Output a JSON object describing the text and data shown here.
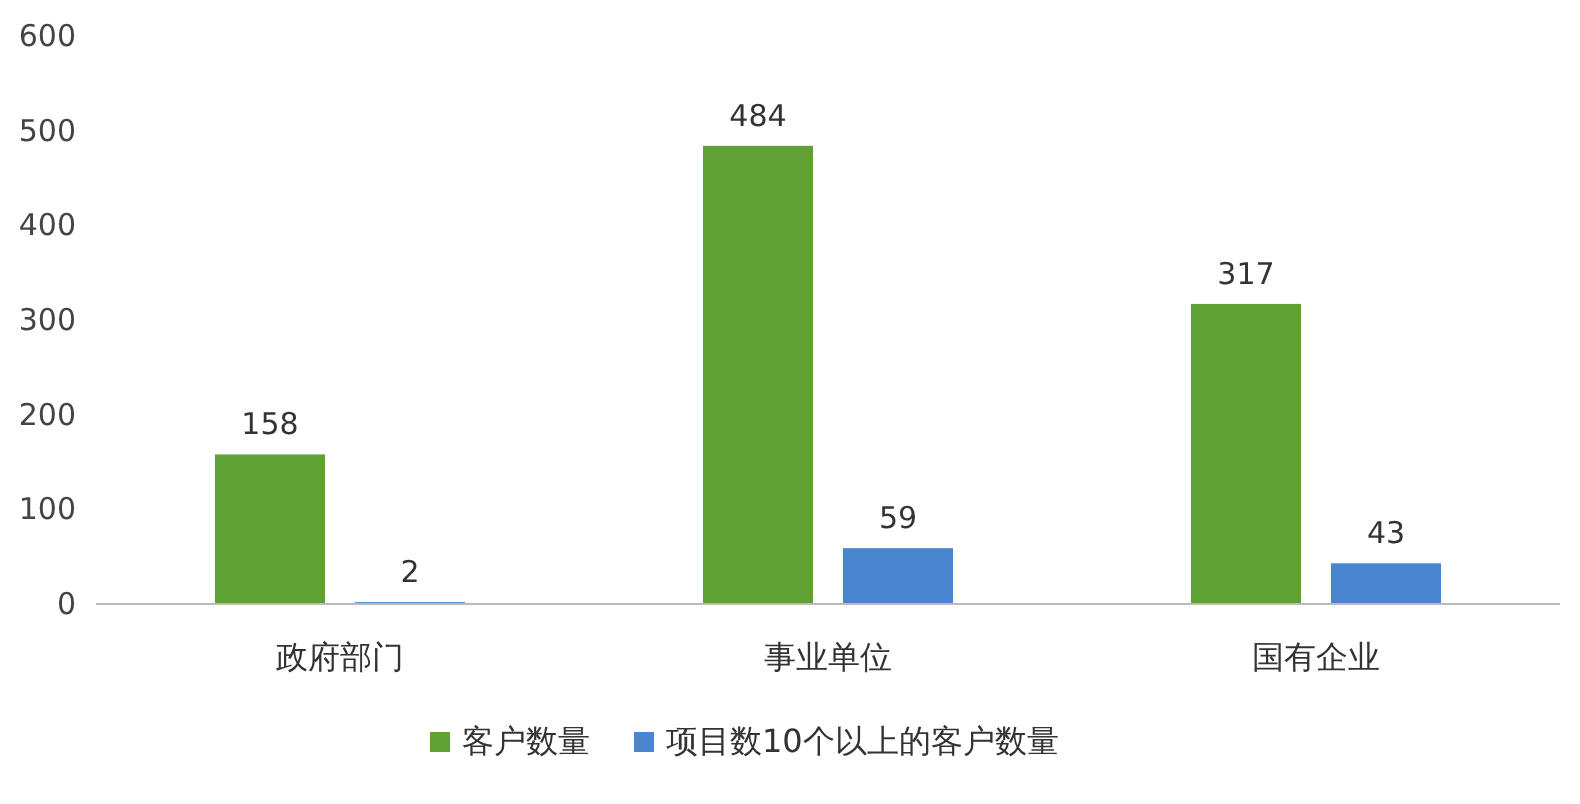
{
  "chart_data": {
    "type": "bar",
    "categories": [
      "政府部门",
      "事业单位",
      "国有企业"
    ],
    "series": [
      {
        "name": "客户数量",
        "color": "#5fa135",
        "values": [
          158,
          484,
          317
        ]
      },
      {
        "name": "项目数10个以上的客户数量",
        "color": "#4a86cf",
        "values": [
          2,
          59,
          43
        ]
      }
    ],
    "ylim": [
      0,
      600
    ],
    "yticks": [
      0,
      100,
      200,
      300,
      400,
      500,
      600
    ],
    "data_labels": true,
    "legend": "bottom",
    "grid": false
  }
}
